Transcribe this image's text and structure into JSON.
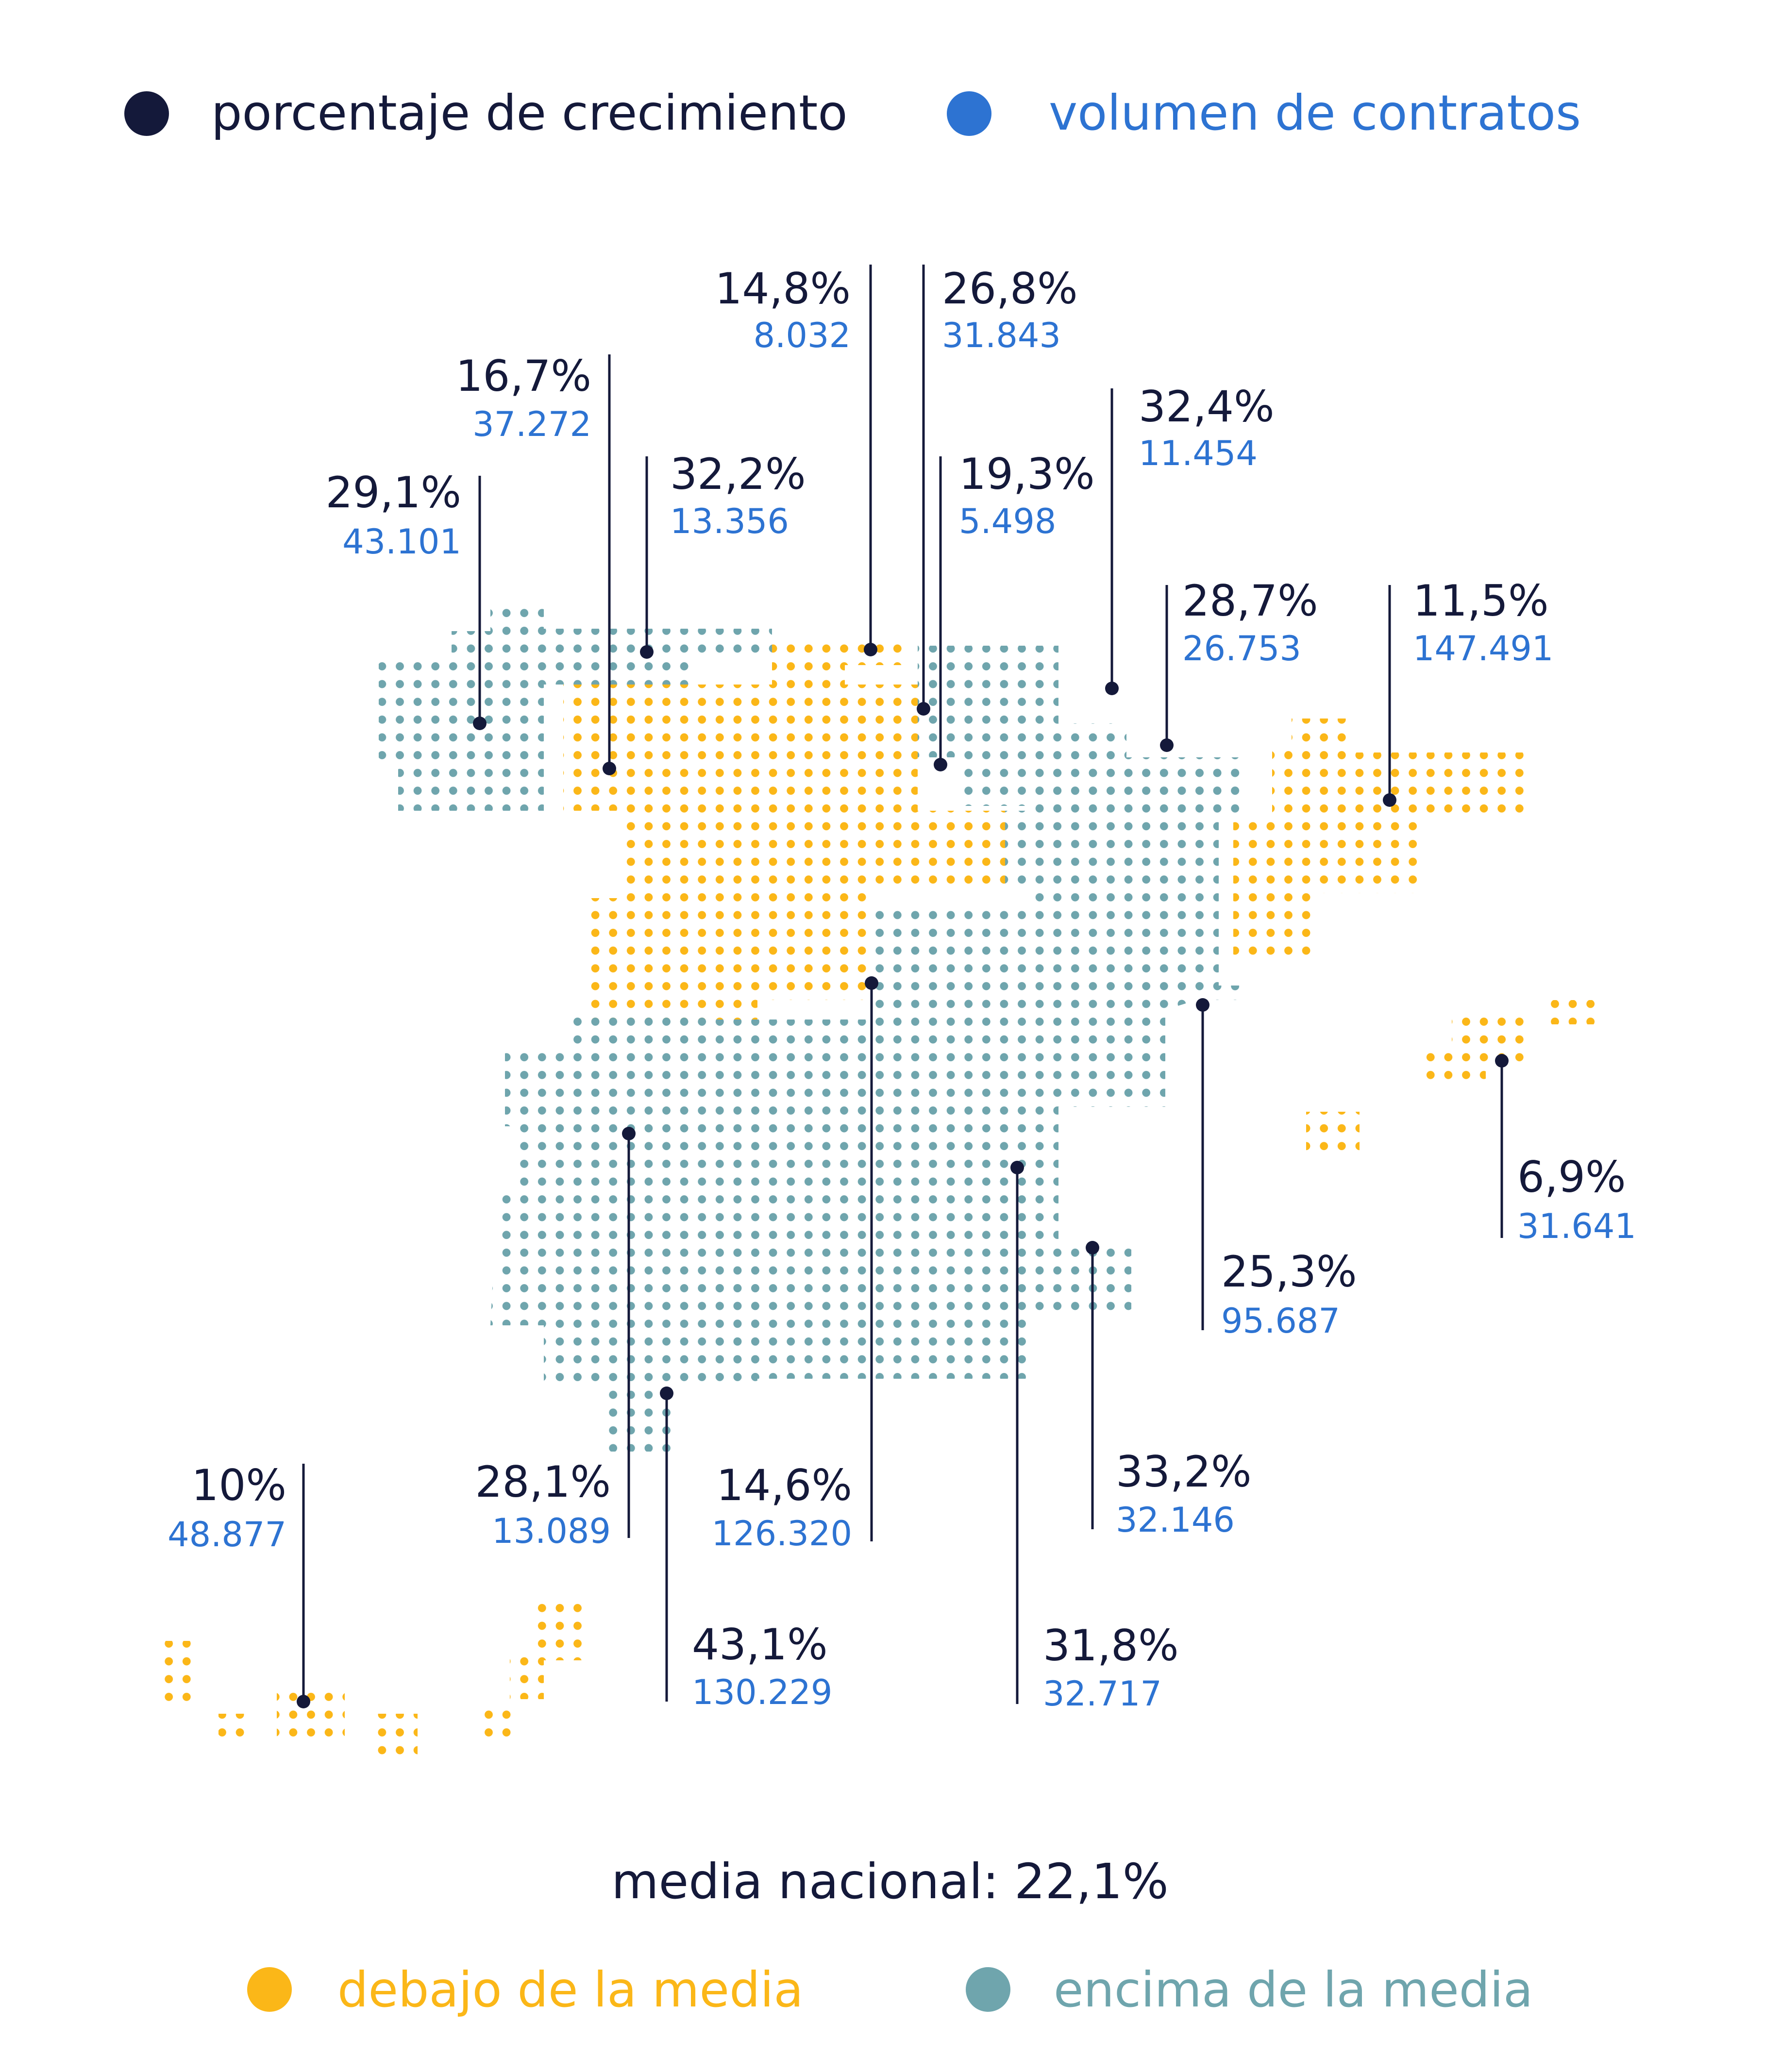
{
  "legend_top": {
    "growth": {
      "label": "porcentaje de crecimiento",
      "color": "#14193a"
    },
    "volume": {
      "label": "volumen de contratos",
      "color": "#2d73d2"
    }
  },
  "legend_bottom": {
    "below": {
      "label": "debajo de la media",
      "color": "#fbb718"
    },
    "above": {
      "label": "encima de la media",
      "color": "#6fa5ad"
    }
  },
  "national_average": "media nacional: 22,1%",
  "regions": [
    {
      "id": "galicia",
      "growth": "29,1%",
      "volume": "43.101"
    },
    {
      "id": "asturias",
      "growth": "32,2%",
      "volume": "13.356"
    },
    {
      "id": "castilla-y-leon",
      "growth": "16,7%",
      "volume": "37.272"
    },
    {
      "id": "cantabria",
      "growth": "14,8%",
      "volume": "8.032"
    },
    {
      "id": "pais-vasco",
      "growth": "26,8%",
      "volume": "31.843"
    },
    {
      "id": "la-rioja",
      "growth": "19,3%",
      "volume": "5.498"
    },
    {
      "id": "navarra",
      "growth": "32,4%",
      "volume": "11.454"
    },
    {
      "id": "aragon",
      "growth": "28,7%",
      "volume": "26.753"
    },
    {
      "id": "cataluna",
      "growth": "11,5%",
      "volume": "147.491"
    },
    {
      "id": "baleares",
      "growth": "6,9%",
      "volume": "31.641"
    },
    {
      "id": "comunidad-valenciana",
      "growth": "25,3%",
      "volume": "95.687"
    },
    {
      "id": "murcia",
      "growth": "33,2%",
      "volume": "32.146"
    },
    {
      "id": "castilla-la-mancha",
      "growth": "31,8%",
      "volume": "32.717"
    },
    {
      "id": "madrid",
      "growth": "14,6%",
      "volume": "126.320"
    },
    {
      "id": "andalucia",
      "growth": "43,1%",
      "volume": "130.229"
    },
    {
      "id": "extremadura",
      "growth": "28,1%",
      "volume": "13.089"
    },
    {
      "id": "canarias",
      "growth": "10%",
      "volume": "48.877"
    }
  ]
}
